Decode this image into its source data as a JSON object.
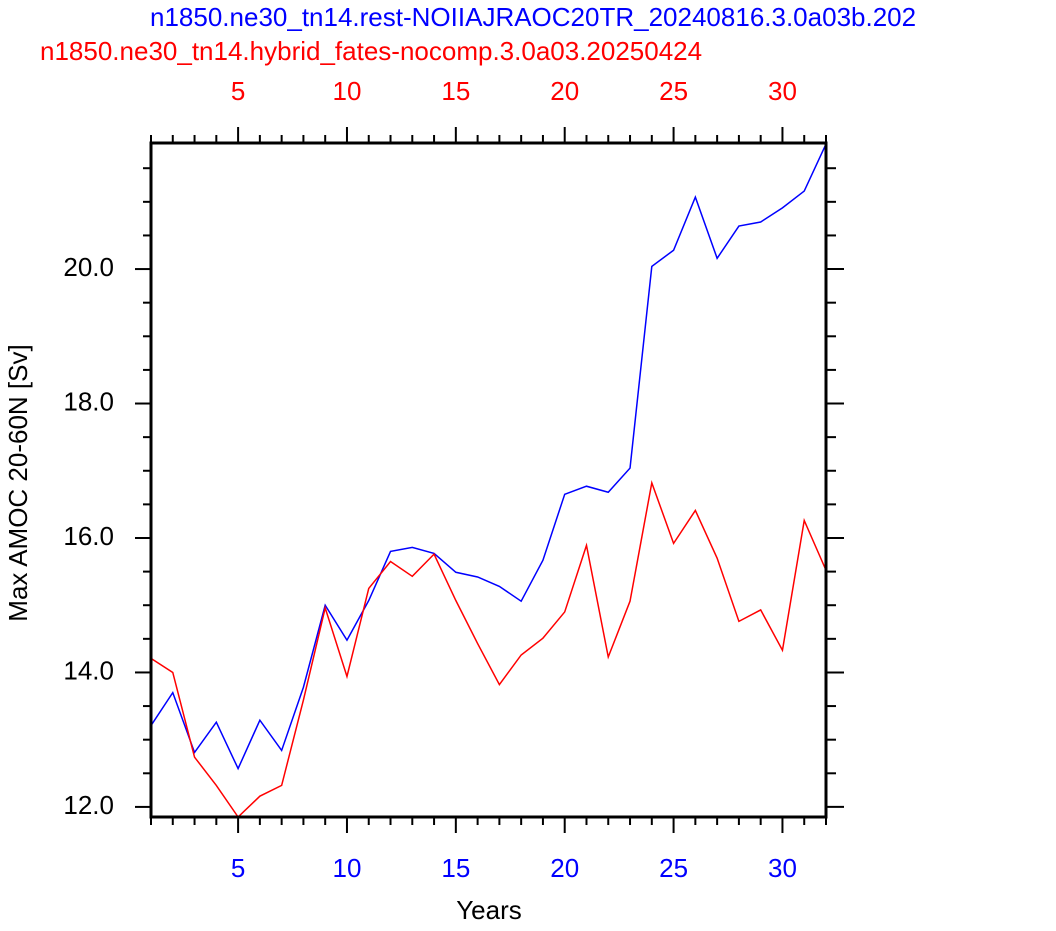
{
  "chart_data": {
    "type": "line",
    "x_label": "Years",
    "y_label": "Max AMOC 20-60N [Sv]",
    "x": [
      1,
      2,
      3,
      4,
      5,
      6,
      7,
      8,
      9,
      10,
      11,
      12,
      13,
      14,
      15,
      16,
      17,
      18,
      19,
      20,
      21,
      22,
      23,
      24,
      25,
      26,
      27,
      28,
      29,
      30,
      31,
      32
    ],
    "series": [
      {
        "name": "n1850.ne30_tn14.rest-NOIIAJRAOC20TR_20240816.3.0a03b.202",
        "color": "#0000ff",
        "values": [
          13.21,
          13.7,
          12.81,
          13.26,
          12.57,
          13.29,
          12.84,
          13.78,
          15.0,
          14.48,
          15.07,
          15.8,
          15.86,
          15.77,
          15.49,
          15.42,
          15.28,
          15.06,
          15.67,
          16.65,
          16.77,
          16.68,
          17.04,
          20.04,
          20.28,
          21.07,
          20.16,
          20.64,
          20.7,
          20.91,
          21.16,
          21.86
        ]
      },
      {
        "name": "n1850.ne30_tn14.hybrid_fates-nocomp.3.0a03.20250424",
        "color": "#ff0000",
        "values": [
          14.21,
          14.0,
          12.74,
          12.32,
          11.85,
          12.16,
          12.32,
          13.59,
          14.96,
          13.94,
          15.25,
          15.65,
          15.43,
          15.76,
          15.07,
          14.43,
          13.82,
          14.26,
          14.51,
          14.9,
          15.89,
          14.23,
          15.06,
          16.82,
          15.92,
          16.41,
          15.7,
          14.76,
          14.93,
          14.33,
          16.26,
          15.52
        ]
      }
    ],
    "xlim": [
      1,
      32
    ],
    "xticks": [
      5,
      10,
      15,
      20,
      25,
      30
    ],
    "x_minor_ticks": [
      1,
      2,
      3,
      4,
      6,
      7,
      8,
      9,
      11,
      12,
      13,
      14,
      16,
      17,
      18,
      19,
      21,
      22,
      23,
      24,
      26,
      27,
      28,
      29,
      31,
      32
    ],
    "ylim": [
      11.85,
      21.875
    ],
    "yticks": [
      {
        "value": 12,
        "label": "12.0"
      },
      {
        "value": 14,
        "label": "14.0"
      },
      {
        "value": 16,
        "label": "16.0"
      },
      {
        "value": 18,
        "label": "18.0"
      },
      {
        "value": 20,
        "label": "20.0"
      }
    ],
    "y_minor_ticks": [
      12.5,
      13,
      13.5,
      14.5,
      15,
      15.5,
      16.5,
      17,
      17.5,
      18.5,
      19,
      19.5,
      20.5,
      21,
      21.5
    ],
    "grid": false
  }
}
